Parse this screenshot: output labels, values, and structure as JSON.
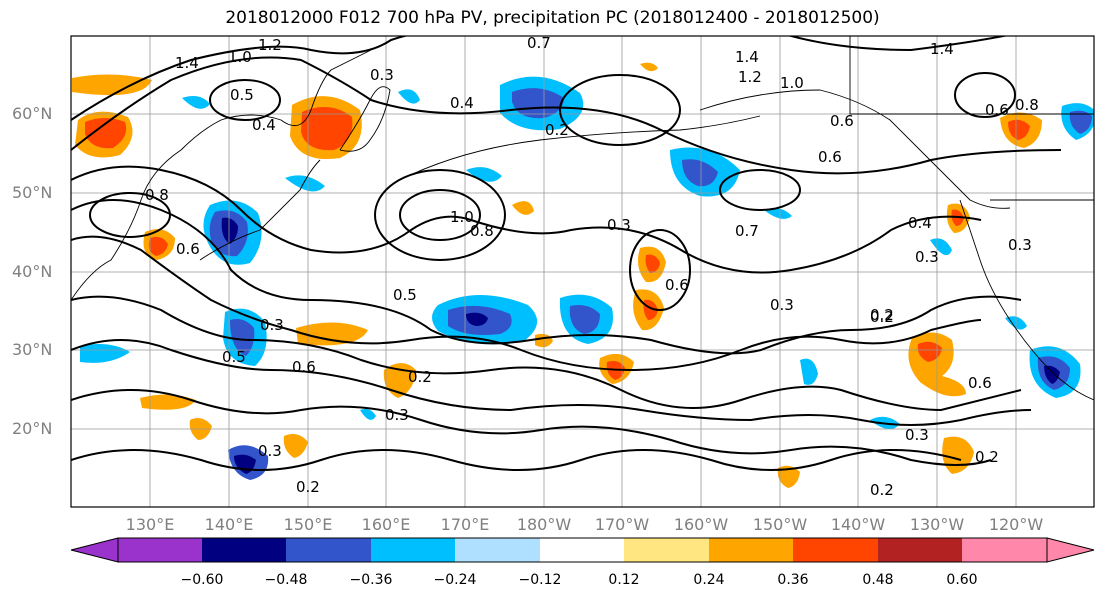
{
  "title": "2018012000 F012 700 hPa PV, precipitation PC (2018012400 - 2018012500)",
  "lat_ticks": [
    "60°N",
    "50°N",
    "40°N",
    "30°N",
    "20°N"
  ],
  "lon_ticks": [
    "130°E",
    "140°E",
    "150°E",
    "160°E",
    "170°E",
    "180°W",
    "170°W",
    "160°W",
    "150°W",
    "140°W",
    "130°W",
    "120°W"
  ],
  "colorbar": {
    "ticks": [
      "−0.60",
      "−0.48",
      "−0.36",
      "−0.24",
      "−0.12",
      "0.12",
      "0.24",
      "0.36",
      "0.48",
      "0.60"
    ],
    "colors": [
      "#9933cc",
      "#000080",
      "#3355cc",
      "#00bfff",
      "#b0e0ff",
      "#ffffff",
      "#ffe680",
      "#ffa500",
      "#ff4500",
      "#b22222",
      "#ff88aa"
    ]
  },
  "contour_labels": [
    "1.4",
    "1.2",
    "1.0",
    "0.8",
    "0.6",
    "0.5",
    "0.4",
    "0.3",
    "0.2",
    "1.0",
    "0.8",
    "0.6",
    "0.5",
    "0.3",
    "0.5",
    "0.6",
    "0.3",
    "0.2",
    "0.3",
    "0.2",
    "0.3",
    "0.2",
    "0.3",
    "0.4",
    "0.7",
    "0.6",
    "1.4",
    "1.2",
    "1.0",
    "0.6",
    "0.3",
    "0.2",
    "0.2",
    "0.3",
    "0.6",
    "0.2",
    "0.4",
    "0.3",
    "1.4",
    "0.7",
    "0.6",
    "0.8"
  ]
}
